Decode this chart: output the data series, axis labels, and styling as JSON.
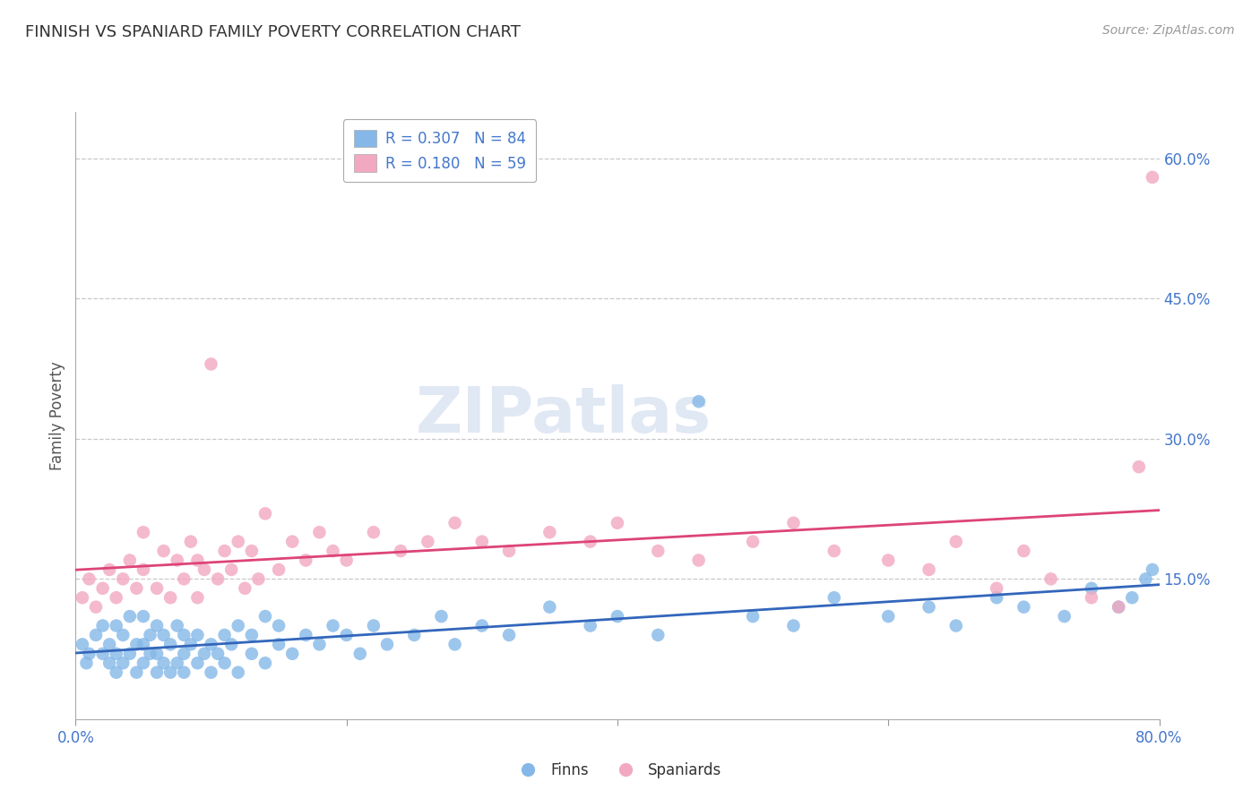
{
  "title": "FINNISH VS SPANIARD FAMILY POVERTY CORRELATION CHART",
  "source": "Source: ZipAtlas.com",
  "ylabel": "Family Poverty",
  "xlim": [
    0.0,
    0.8
  ],
  "ylim": [
    0.0,
    0.65
  ],
  "yticks": [
    0.15,
    0.3,
    0.45,
    0.6
  ],
  "ytick_labels": [
    "15.0%",
    "30.0%",
    "45.0%",
    "60.0%"
  ],
  "xticks": [
    0.0,
    0.2,
    0.4,
    0.6,
    0.8
  ],
  "xtick_labels": [
    "0.0%",
    "",
    "",
    "",
    "80.0%"
  ],
  "grid_color": "#c8c8c8",
  "background_color": "#ffffff",
  "watermark_text": "ZIPatlas",
  "finns_color": "#85b8e8",
  "spaniards_color": "#f2a8c0",
  "finns_line_color": "#3366bb",
  "spaniards_line_color": "#dd4477",
  "R_finns": 0.307,
  "N_finns": 84,
  "R_spaniards": 0.18,
  "N_spaniards": 59,
  "finns_x": [
    0.005,
    0.008,
    0.01,
    0.015,
    0.02,
    0.02,
    0.025,
    0.025,
    0.03,
    0.03,
    0.03,
    0.035,
    0.035,
    0.04,
    0.04,
    0.045,
    0.045,
    0.05,
    0.05,
    0.05,
    0.055,
    0.055,
    0.06,
    0.06,
    0.06,
    0.065,
    0.065,
    0.07,
    0.07,
    0.075,
    0.075,
    0.08,
    0.08,
    0.08,
    0.085,
    0.09,
    0.09,
    0.095,
    0.1,
    0.1,
    0.105,
    0.11,
    0.11,
    0.115,
    0.12,
    0.12,
    0.13,
    0.13,
    0.14,
    0.14,
    0.15,
    0.15,
    0.16,
    0.17,
    0.18,
    0.19,
    0.2,
    0.21,
    0.22,
    0.23,
    0.25,
    0.27,
    0.28,
    0.3,
    0.32,
    0.35,
    0.38,
    0.4,
    0.43,
    0.46,
    0.5,
    0.53,
    0.56,
    0.6,
    0.63,
    0.65,
    0.68,
    0.7,
    0.73,
    0.75,
    0.77,
    0.78,
    0.79,
    0.795
  ],
  "finns_y": [
    0.08,
    0.06,
    0.07,
    0.09,
    0.07,
    0.1,
    0.06,
    0.08,
    0.05,
    0.07,
    0.1,
    0.06,
    0.09,
    0.07,
    0.11,
    0.05,
    0.08,
    0.06,
    0.08,
    0.11,
    0.07,
    0.09,
    0.05,
    0.07,
    0.1,
    0.06,
    0.09,
    0.05,
    0.08,
    0.06,
    0.1,
    0.05,
    0.07,
    0.09,
    0.08,
    0.06,
    0.09,
    0.07,
    0.05,
    0.08,
    0.07,
    0.06,
    0.09,
    0.08,
    0.05,
    0.1,
    0.07,
    0.09,
    0.06,
    0.11,
    0.08,
    0.1,
    0.07,
    0.09,
    0.08,
    0.1,
    0.09,
    0.07,
    0.1,
    0.08,
    0.09,
    0.11,
    0.08,
    0.1,
    0.09,
    0.12,
    0.1,
    0.11,
    0.09,
    0.34,
    0.11,
    0.1,
    0.13,
    0.11,
    0.12,
    0.1,
    0.13,
    0.12,
    0.11,
    0.14,
    0.12,
    0.13,
    0.15,
    0.16
  ],
  "spaniards_x": [
    0.005,
    0.01,
    0.015,
    0.02,
    0.025,
    0.03,
    0.035,
    0.04,
    0.045,
    0.05,
    0.05,
    0.06,
    0.065,
    0.07,
    0.075,
    0.08,
    0.085,
    0.09,
    0.09,
    0.095,
    0.1,
    0.105,
    0.11,
    0.115,
    0.12,
    0.125,
    0.13,
    0.135,
    0.14,
    0.15,
    0.16,
    0.17,
    0.18,
    0.19,
    0.2,
    0.22,
    0.24,
    0.26,
    0.28,
    0.3,
    0.32,
    0.35,
    0.38,
    0.4,
    0.43,
    0.46,
    0.5,
    0.53,
    0.56,
    0.6,
    0.63,
    0.65,
    0.68,
    0.7,
    0.72,
    0.75,
    0.77,
    0.785,
    0.795
  ],
  "spaniards_y": [
    0.13,
    0.15,
    0.12,
    0.14,
    0.16,
    0.13,
    0.15,
    0.17,
    0.14,
    0.16,
    0.2,
    0.14,
    0.18,
    0.13,
    0.17,
    0.15,
    0.19,
    0.13,
    0.17,
    0.16,
    0.38,
    0.15,
    0.18,
    0.16,
    0.19,
    0.14,
    0.18,
    0.15,
    0.22,
    0.16,
    0.19,
    0.17,
    0.2,
    0.18,
    0.17,
    0.2,
    0.18,
    0.19,
    0.21,
    0.19,
    0.18,
    0.2,
    0.19,
    0.21,
    0.18,
    0.17,
    0.19,
    0.21,
    0.18,
    0.17,
    0.16,
    0.19,
    0.14,
    0.18,
    0.15,
    0.13,
    0.12,
    0.27,
    0.58
  ]
}
